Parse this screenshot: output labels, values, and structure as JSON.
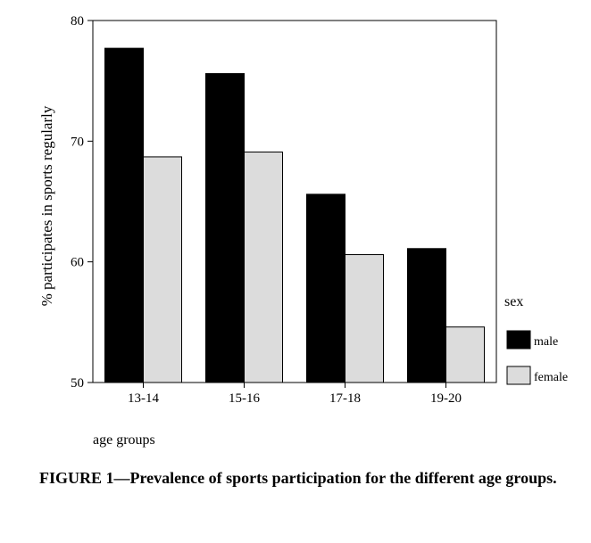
{
  "chart_data": {
    "type": "bar",
    "title": "",
    "xlabel": "age groups",
    "ylabel": "% participates in sports regularly",
    "categories": [
      "13-14",
      "15-16",
      "17-18",
      "19-20"
    ],
    "series": [
      {
        "name": "male",
        "values": [
          77.7,
          75.6,
          65.6,
          61.1
        ],
        "color": "#000000"
      },
      {
        "name": "female",
        "values": [
          68.7,
          69.1,
          60.6,
          54.6
        ],
        "color": "#dcdcdc"
      }
    ],
    "ylim": [
      50,
      80
    ],
    "yticks": [
      50,
      60,
      70,
      80
    ],
    "grid": false,
    "legend_title": "sex",
    "legend_position": "right"
  },
  "caption": "FIGURE 1—Prevalence of sports participation for the different age groups."
}
